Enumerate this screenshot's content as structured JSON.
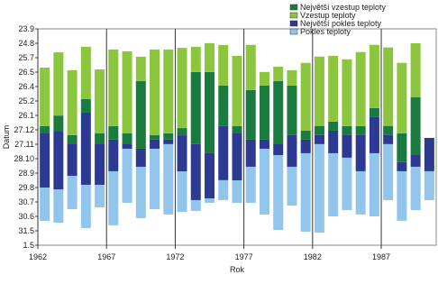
{
  "chart_data": {
    "type": "stacked-bar",
    "y_label": "Datum",
    "x_label": "Rok",
    "x": [
      1962,
      1963,
      1964,
      1965,
      1966,
      1967,
      1968,
      1969,
      1970,
      1971,
      1972,
      1973,
      1974,
      1975,
      1976,
      1977,
      1978,
      1979,
      1980,
      1981,
      1982,
      1983,
      1984,
      1985,
      1986,
      1987,
      1988,
      1989,
      1990
    ],
    "xlim": [
      1962,
      1991
    ],
    "xticks": [
      1962,
      1967,
      1972,
      1977,
      1982,
      1987
    ],
    "ylim": [
      0,
      15
    ],
    "yticks": [
      {
        "value": 0,
        "label": "1.5"
      },
      {
        "value": 1,
        "label": "31.5"
      },
      {
        "value": 2,
        "label": "30.6"
      },
      {
        "value": 3,
        "label": "30.7"
      },
      {
        "value": 4,
        "label": "29.8"
      },
      {
        "value": 5,
        "label": "28.9"
      },
      {
        "value": 6,
        "label": "28.10"
      },
      {
        "value": 7,
        "label": "27.11"
      },
      {
        "value": 8,
        "label": "27.12"
      },
      {
        "value": 9,
        "label": "26.1"
      },
      {
        "value": 10,
        "label": "25.2"
      },
      {
        "value": 11,
        "label": "26.4"
      },
      {
        "value": 12,
        "label": "26.5"
      },
      {
        "value": 13,
        "label": "25.7"
      },
      {
        "value": 14,
        "label": "24.8"
      },
      {
        "value": 15,
        "label": "23.9"
      }
    ],
    "legend": [
      {
        "name": "Největší vzestup teploty",
        "color": "#1b7a3e"
      },
      {
        "name": "Vzestup teploty",
        "color": "#8cc63f"
      },
      {
        "name": "Největší pokles teploty",
        "color": "#2c3a91"
      },
      {
        "name": "Pokles teploty",
        "color": "#92c5ec"
      }
    ],
    "series": [
      {
        "color": "none",
        "values": [
          1.69,
          1.56,
          2.5,
          1.19,
          2.63,
          1.38,
          2.94,
          1.88,
          2.5,
          2.13,
          2.31,
          2.38,
          2.94,
          3.13,
          2.94,
          2.94,
          2.13,
          1.06,
          2.75,
          0.94,
          0.88,
          2,
          2.44,
          2.13,
          2,
          3.13,
          1.69,
          2.44,
          3.13
        ]
      },
      {
        "color": "#92c5ec",
        "values": [
          2.31,
          2.31,
          2.31,
          3,
          1.56,
          3.75,
          3.75,
          3.56,
          4.19,
          4.88,
          2.81,
          0.75,
          0.31,
          1.38,
          1.56,
          2.5,
          4.56,
          5.19,
          2.69,
          5.44,
          6.13,
          4.38,
          3.63,
          3,
          4.38,
          3.88,
          3.44,
          3,
          2
        ]
      },
      {
        "color": "#2c3a91",
        "values": [
          3.75,
          4.06,
          2.19,
          5,
          2.81,
          2.19,
          0.31,
          1.25,
          0.63,
          0.31,
          2.5,
          3.88,
          3.13,
          3.75,
          3.25,
          1.88,
          0.63,
          0.75,
          2.19,
          0.94,
          0.63,
          1.56,
          1.56,
          2.5,
          2.5,
          0.63,
          0.63,
          0.81,
          2.31
        ]
      },
      {
        "color": "#1b7a3e",
        "values": [
          0.5,
          1.06,
          0.63,
          0.94,
          0.75,
          0.94,
          0.75,
          4.69,
          0.31,
          0.44,
          0.5,
          5,
          5.63,
          2.81,
          0.5,
          3.44,
          3.75,
          4.38,
          3.44,
          0.63,
          0.63,
          0.63,
          0.63,
          0.63,
          0.63,
          0.63,
          2,
          4,
          0
        ]
      },
      {
        "color": "#8cc63f",
        "values": [
          4.06,
          4.38,
          4.5,
          3.63,
          4.44,
          5.31,
          5.69,
          1.69,
          5.94,
          5.81,
          5.56,
          1.75,
          2,
          2.81,
          4.88,
          3.13,
          0.94,
          1,
          1.06,
          4.69,
          4.81,
          4.56,
          4.63,
          5.13,
          4.38,
          5.44,
          4.88,
          3.75,
          0
        ]
      }
    ]
  }
}
